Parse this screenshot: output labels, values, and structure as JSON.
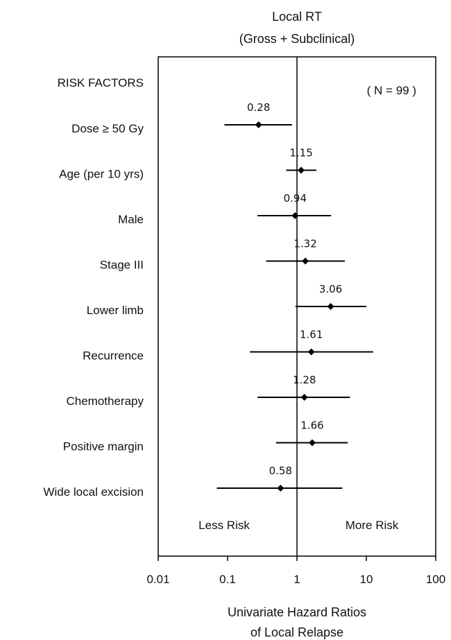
{
  "chart_data": {
    "type": "forest",
    "title_line1": "Local RT",
    "title_line2": "(Gross + Subclinical)",
    "column_header": "RISK FACTORS",
    "n_label": "( N = 99 )",
    "xlabel_line1": "Univariate Hazard Ratios",
    "xlabel_line2": "of Local Relapse",
    "x_scale": "log",
    "xlim": [
      0.01,
      100
    ],
    "x_ticks": [
      "0.01",
      "0.1",
      "1",
      "10",
      "100"
    ],
    "x_tick_values": [
      0.01,
      0.1,
      1,
      10,
      100
    ],
    "reference_line": 1,
    "left_annotation": "Less Risk",
    "right_annotation": "More Risk",
    "rows": [
      {
        "label": "Dose ≥ 50 Gy",
        "hr": 0.28,
        "hr_label": "0.28",
        "ci_low": 0.09,
        "ci_high": 0.85
      },
      {
        "label": "Age (per 10 yrs)",
        "hr": 1.15,
        "hr_label": "1.15",
        "ci_low": 0.7,
        "ci_high": 1.9
      },
      {
        "label": "Male",
        "hr": 0.94,
        "hr_label": "0.94",
        "ci_low": 0.27,
        "ci_high": 3.1
      },
      {
        "label": "Stage III",
        "hr": 1.32,
        "hr_label": "1.32",
        "ci_low": 0.36,
        "ci_high": 4.9
      },
      {
        "label": "Lower limb",
        "hr": 3.06,
        "hr_label": "3.06",
        "ci_low": 0.95,
        "ci_high": 10
      },
      {
        "label": "Recurrence",
        "hr": 1.61,
        "hr_label": "1.61",
        "ci_low": 0.21,
        "ci_high": 12.5
      },
      {
        "label": "Chemotherapy",
        "hr": 1.28,
        "hr_label": "1.28",
        "ci_low": 0.27,
        "ci_high": 5.8
      },
      {
        "label": "Positive margin",
        "hr": 1.66,
        "hr_label": "1.66",
        "ci_low": 0.5,
        "ci_high": 5.4
      },
      {
        "label": "Wide local excision",
        "hr": 0.58,
        "hr_label": "0.58",
        "ci_low": 0.07,
        "ci_high": 4.5
      }
    ]
  }
}
